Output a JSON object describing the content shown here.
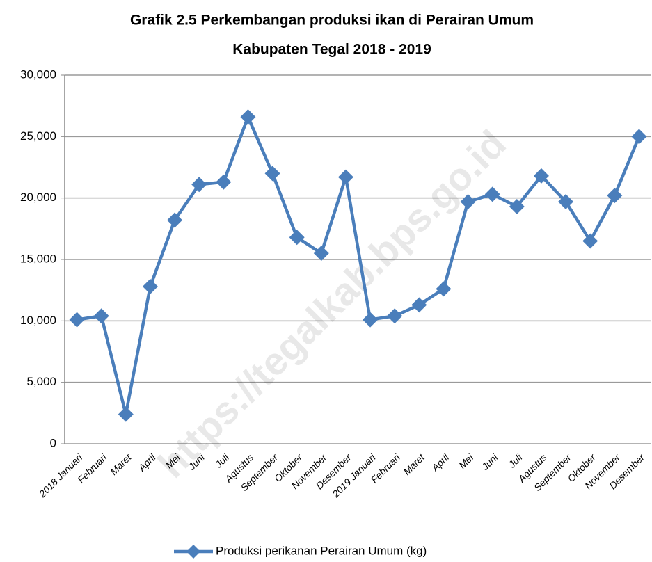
{
  "chart_data": {
    "type": "line",
    "title": [
      "Grafik 2.5 Perkembangan produksi ikan di  Perairan Umum",
      "Kabupaten Tegal 2018 - 2019"
    ],
    "watermark": "https://tegalkab.bps.go.id",
    "categories": [
      "2018 Januari",
      "Februari",
      "Maret",
      "April",
      "Mei",
      "Juni",
      "Juli",
      "Agustus",
      "September",
      "Oktober",
      "November",
      "Desember",
      "2019 Januari",
      "Februari",
      "Maret",
      "April",
      "Mei",
      "Juni",
      "Juli",
      "Agustus",
      "September",
      "Oktober",
      "November",
      "Desember"
    ],
    "series": [
      {
        "name": "Produksi perikanan Perairan Umum (kg)",
        "color": "#4a7ebb",
        "values": [
          10100,
          10400,
          2400,
          12800,
          18200,
          21100,
          21300,
          26600,
          22000,
          16800,
          15500,
          21700,
          10100,
          10400,
          11300,
          12600,
          19700,
          20300,
          19300,
          21800,
          19700,
          16500,
          20200,
          25000
        ]
      }
    ],
    "ylim": [
      0,
      30000
    ],
    "yticks": [
      0,
      {
        "value": 5000,
        "label": "5,000"
      },
      {
        "value": 10000,
        "label": "10,000"
      },
      {
        "value": 15000,
        "label": "15,000"
      },
      {
        "value": 20000,
        "label": "20,000"
      },
      {
        "value": 25000,
        "label": "25,000"
      },
      {
        "value": 30000,
        "label": "30,000"
      }
    ],
    "grid": true,
    "legend": "bottom"
  }
}
